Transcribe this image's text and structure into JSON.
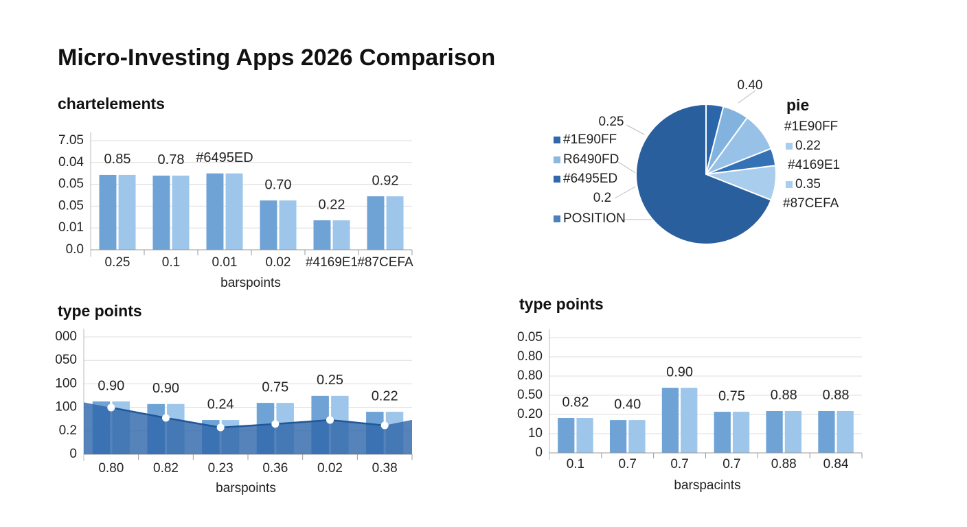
{
  "title": "Micro-Investing Apps 2026 Comparison",
  "chart_data": [
    {
      "type": "bar",
      "title": "chartelements",
      "x_label": "barspoints",
      "categories": [
        "0.25",
        "0.1",
        "0.01",
        "0.02",
        "#4169E1",
        "#87CEFA"
      ],
      "series": [
        {
          "color": "#6fa3d6",
          "values": [
            3.43,
            3.4,
            3.5,
            2.26,
            1.35,
            2.45
          ]
        },
        {
          "color": "#9ec6ea",
          "values": [
            3.43,
            3.4,
            3.5,
            2.26,
            1.35,
            2.45
          ]
        }
      ],
      "annotations": [
        "0.85",
        "0.78",
        "#6495ED",
        "0.70",
        "0.22",
        "0.92"
      ],
      "ylim": [
        0,
        5
      ],
      "yticks": [
        {
          "value": 0,
          "label": "0.0"
        },
        {
          "value": 1,
          "label": "0.01"
        },
        {
          "value": 2,
          "label": "0.05"
        },
        {
          "value": 3,
          "label": "0.05"
        },
        {
          "value": 4,
          "label": "0.04"
        },
        {
          "value": 5,
          "label": "7.05"
        }
      ],
      "grid": true
    },
    {
      "type": "pie",
      "title": "pie",
      "values": [
        4,
        6,
        9,
        4,
        8,
        69
      ],
      "colors": [
        "#2b66aa",
        "#82b3df",
        "#97c1e6",
        "#3572b5",
        "#a9cdec",
        "#2a5f9e"
      ],
      "annotations": [
        "0.40",
        "#1E90FF",
        "0.22",
        "#4169E1",
        "0.35",
        "#87CEFA",
        "0.25",
        "#1E90FF",
        "R6490FD",
        "#6495ED",
        "0.2",
        "POSITION"
      ]
    },
    {
      "type": "bar",
      "title": "type points",
      "x_label": "barspoints",
      "categories": [
        "0.80",
        "0.82",
        "0.23",
        "0.36",
        "0.02",
        "0.38"
      ],
      "series": [
        {
          "color": "#6fa3d6",
          "values": [
            2.25,
            2.14,
            1.46,
            2.19,
            2.49,
            1.81
          ]
        },
        {
          "color": "#9ec6ea",
          "values": [
            2.25,
            2.14,
            1.46,
            2.19,
            2.49,
            1.81
          ]
        }
      ],
      "line": {
        "color": "#2f68ab",
        "values": [
          1.99,
          1.55,
          1.14,
          1.29,
          1.46,
          1.23
        ]
      },
      "annotations": [
        "0.90",
        "0.90",
        "0.24",
        "0.75",
        "0.25",
        "0.22"
      ],
      "ylim": [
        0,
        5
      ],
      "yticks": [
        {
          "value": 0,
          "label": "0"
        },
        {
          "value": 1,
          "label": "0.2"
        },
        {
          "value": 2,
          "label": "100"
        },
        {
          "value": 3,
          "label": "100"
        },
        {
          "value": 4,
          "label": "050"
        },
        {
          "value": 5,
          "label": "000"
        }
      ],
      "grid": true
    },
    {
      "type": "bar",
      "title": "type points",
      "x_label": "barspacints",
      "categories": [
        "0.1",
        "0.7",
        "0.7",
        "0.7",
        "0.88",
        "0.84"
      ],
      "series": [
        {
          "color": "#6fa3d6",
          "values": [
            1.82,
            1.71,
            3.39,
            2.14,
            2.18,
            2.18
          ]
        },
        {
          "color": "#9ec6ea",
          "values": [
            1.82,
            1.71,
            3.39,
            2.14,
            2.18,
            2.18
          ]
        }
      ],
      "annotations": [
        "0.82",
        "0.40",
        "0.90",
        "0.75",
        "0.88",
        "0.88"
      ],
      "ylim": [
        0,
        6
      ],
      "yticks": [
        {
          "value": 0,
          "label": "0"
        },
        {
          "value": 1,
          "label": "10"
        },
        {
          "value": 2,
          "label": "0.20"
        },
        {
          "value": 3,
          "label": "0.50"
        },
        {
          "value": 4,
          "label": "0.80"
        },
        {
          "value": 5,
          "label": "0.80"
        },
        {
          "value": 6,
          "label": "0.05"
        }
      ],
      "grid": true
    }
  ]
}
